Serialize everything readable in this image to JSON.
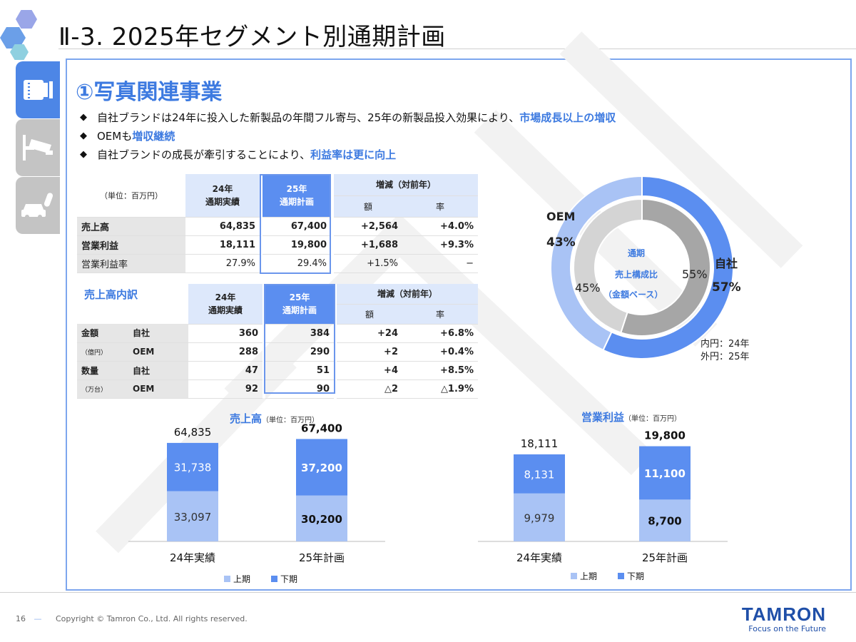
{
  "page": {
    "title": "Ⅱ-3. 2025年セグメント別通期計画",
    "page_number": "16",
    "copyright": "Copyright © Tamron Co., Ltd. All rights reserved.",
    "logo_name": "TAMRON",
    "logo_tagline": "Focus on the Future"
  },
  "side_tabs": [
    {
      "icon": "camera-lens-icon",
      "active": true
    },
    {
      "icon": "security-camera-icon",
      "active": false
    },
    {
      "icon": "car-camera-icon",
      "active": false
    }
  ],
  "section": {
    "title": "①写真関連事業",
    "bullets": [
      {
        "text": "自社ブランドは24年に投入した新製品の年間フル寄与、25年の新製品投入効果により、",
        "highlight": "市場成長以上の増収"
      },
      {
        "text": "OEMも",
        "highlight": "増収継続"
      },
      {
        "text": "自社ブランドの成長が牽引することにより、",
        "highlight": "利益率は更に向上"
      }
    ]
  },
  "table1": {
    "unit": "（単位：百万円）",
    "col_24": [
      "24年",
      "通期実績"
    ],
    "col_25": [
      "25年",
      "通期計画"
    ],
    "col_diff": "増減（対前年）",
    "col_amount": "額",
    "col_rate": "率",
    "rows": [
      {
        "label": "売上高",
        "v24": "64,835",
        "v25": "67,400",
        "diff": "+2,564",
        "rate": "+4.0%"
      },
      {
        "label": "営業利益",
        "v24": "18,111",
        "v25": "19,800",
        "diff": "+1,688",
        "rate": "+9.3%"
      },
      {
        "label": "営業利益率",
        "v24": "27.9%",
        "v25": "29.4%",
        "diff": "+1.5%",
        "rate": "−"
      }
    ]
  },
  "table2": {
    "title": "売上高内訳",
    "col_24": [
      "24年",
      "通期実績"
    ],
    "col_25": [
      "25年",
      "通期計画"
    ],
    "col_diff": "増減（対前年）",
    "col_amount": "額",
    "col_rate": "率",
    "groups": [
      {
        "label": "金額",
        "unit": "（億円）"
      },
      {
        "label": "数量",
        "unit": "（万台）"
      }
    ],
    "rows": [
      {
        "sub": "自社",
        "v24": "360",
        "v25": "384",
        "diff": "+24",
        "rate": "+6.8%"
      },
      {
        "sub": "OEM",
        "v24": "288",
        "v25": "290",
        "diff": "+2",
        "rate": "+0.4%"
      },
      {
        "sub": "自社",
        "v24": "47",
        "v25": "51",
        "diff": "+4",
        "rate": "+8.5%"
      },
      {
        "sub": "OEM",
        "v24": "92",
        "v25": "90",
        "diff": "△2",
        "rate": "△1.9%"
      }
    ]
  },
  "donut": {
    "center_line1": "通期",
    "center_line2": "売上構成比",
    "center_line3": "（金額ベース）",
    "oem_label": "OEM",
    "own_label": "自社",
    "outer_oem_pct": "43%",
    "outer_own_pct": "57%",
    "inner_oem_pct": "45%",
    "inner_own_pct": "55%",
    "legend_inner": "内円：24年",
    "legend_outer": "外円：25年",
    "colors": {
      "outer_own": "#5b8ef0",
      "outer_oem": "#a9c3f5",
      "inner_own": "#a6a6a6",
      "inner_oem": "#d4d4d4"
    }
  },
  "chart_data": [
    {
      "type": "bar",
      "stacked": true,
      "title": "売上高",
      "unit": "（単位：百万円）",
      "categories": [
        "24年実績",
        "25年計画"
      ],
      "series": [
        {
          "name": "上期",
          "values": [
            33097,
            30200
          ],
          "labels": [
            "33,097",
            "30,200"
          ],
          "color": "#a9c3f5"
        },
        {
          "name": "下期",
          "values": [
            31738,
            37200
          ],
          "labels": [
            "31,738",
            "37,200"
          ],
          "color": "#5b8ef0"
        }
      ],
      "totals": [
        "64,835",
        "67,400"
      ]
    },
    {
      "type": "bar",
      "stacked": true,
      "title": "営業利益",
      "unit": "（単位：百万円）",
      "categories": [
        "24年実績",
        "25年計画"
      ],
      "series": [
        {
          "name": "上期",
          "values": [
            9979,
            8700
          ],
          "labels": [
            "9,979",
            "8,700"
          ],
          "color": "#a9c3f5"
        },
        {
          "name": "下期",
          "values": [
            8131,
            11100
          ],
          "labels": [
            "8,131",
            "11,100"
          ],
          "color": "#5b8ef0"
        }
      ],
      "totals": [
        "18,111",
        "19,800"
      ]
    }
  ]
}
